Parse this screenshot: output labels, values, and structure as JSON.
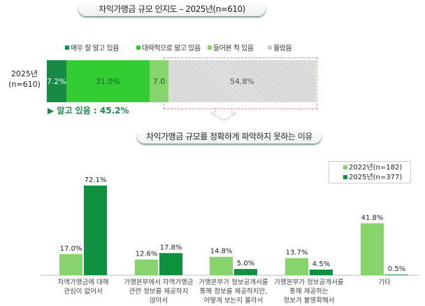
{
  "chart_data": [
    {
      "type": "bar",
      "orientation": "horizontal",
      "stacked": true,
      "title": "차익가맹금 규모 인지도 – 2025년(n=610)",
      "categories": [
        "2025년\n(n=610)"
      ],
      "category_lines": [
        "2025년",
        "(n=610)"
      ],
      "series": [
        {
          "name": "매우 잘 알고 있음",
          "values": [
            7.2
          ],
          "label": "7.2%",
          "color": "#178a46"
        },
        {
          "name": "대략적으로 알고 있음",
          "values": [
            31.0
          ],
          "label": "31.0%",
          "color": "#33cc33"
        },
        {
          "name": "들어본 적 있음",
          "values": [
            7.0
          ],
          "label": "7.0",
          "color": "#88d46c"
        },
        {
          "name": "몰랐음",
          "values": [
            54.8
          ],
          "label": "54.8%",
          "color": "#cccccc"
        }
      ],
      "annotation": "▶ 알고 있음 : 45.2%",
      "legend": "top"
    },
    {
      "type": "bar",
      "title": "차익가맹금 규모를 정확하게 파악하지 못하는 이유",
      "categories": [
        [
          "차액가맹금에 대해",
          "관심이 없어서"
        ],
        [
          "가맹본부에서 차액가맹금",
          "관련 정보를 제공하지",
          "않아서"
        ],
        [
          "가맹본부가 정보공개서를",
          "통해 정보를 제공하지만,",
          "어떻게 보는지 몰라서"
        ],
        [
          "가맹본부가 정보공개서를",
          "통해 제공하는",
          "정보가 불명확해서"
        ],
        [
          "기타"
        ]
      ],
      "series": [
        {
          "name": "2022년(n=182)",
          "values": [
            17.0,
            12.6,
            14.8,
            13.7,
            41.8
          ],
          "labels": [
            "17.0%",
            "12.6%",
            "14.8%",
            "13.7%",
            "41.8%"
          ],
          "color": "#88d46c"
        },
        {
          "name": "2025년(n=377)",
          "values": [
            72.1,
            17.8,
            5.0,
            4.5,
            0.5
          ],
          "labels": [
            "72.1%",
            "17.8%",
            "5.0%",
            "4.5%",
            "0.5%"
          ],
          "color": "#0f9140"
        }
      ],
      "ylim": [
        0,
        80
      ],
      "grid": false,
      "legend": "top-right"
    }
  ]
}
